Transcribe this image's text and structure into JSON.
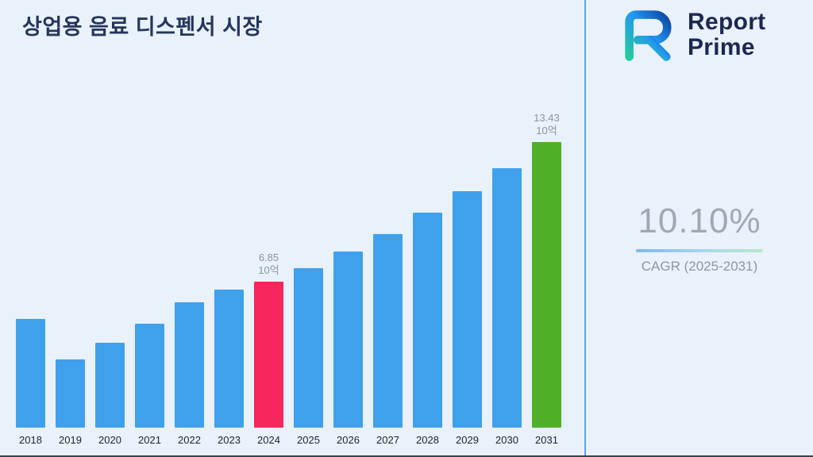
{
  "logo": {
    "line1": "Report",
    "line2": "Prime"
  },
  "cagr": {
    "value": "10.10%",
    "caption": "CAGR (2025-2031)"
  },
  "colors": {
    "background": "#e9f1fa",
    "divider": "#53a9e9",
    "title": "#25355c",
    "logo_text": "#1c2752",
    "cagr_value": "#9fa9b4",
    "cagr_caption": "#8d97a3",
    "annotation": "#8b95a1",
    "axis_label": "#1c2530"
  },
  "chart_data": {
    "type": "bar",
    "title": "상업용 음료 디스펜서 시장",
    "xlabel": "",
    "ylabel": "",
    "unit": "10억",
    "categories": [
      "2018",
      "2019",
      "2020",
      "2021",
      "2022",
      "2023",
      "2024",
      "2025",
      "2026",
      "2027",
      "2028",
      "2029",
      "2030",
      "2031"
    ],
    "values": [
      5.1,
      3.2,
      4.0,
      4.9,
      5.9,
      6.5,
      6.85,
      7.5,
      8.3,
      9.1,
      10.1,
      11.1,
      12.2,
      13.43
    ],
    "ylim": [
      0,
      13.43
    ],
    "grid": false,
    "legend": false,
    "bar_color": "#3fa1ec",
    "highlight_bars": {
      "2024": "#f7265c",
      "2031": "#4fb028"
    },
    "annotations": [
      {
        "category": "2024",
        "text": "6.85",
        "unit": "10억"
      },
      {
        "category": "2031",
        "text": "13.43",
        "unit": "10억"
      }
    ]
  }
}
